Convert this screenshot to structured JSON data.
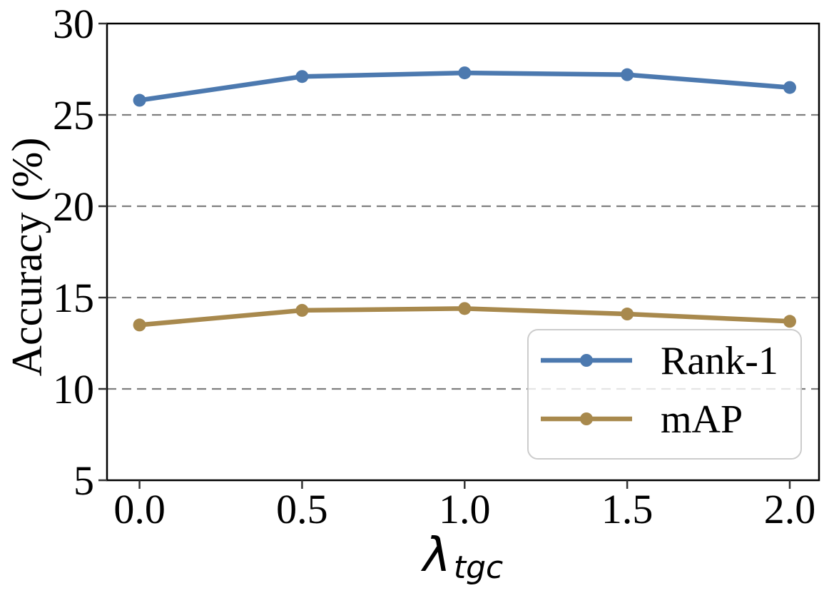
{
  "page": {
    "background": "#ffffff"
  },
  "chart_data": {
    "type": "line",
    "title": "",
    "xlabel_base": "λ",
    "xlabel_subscript": "tgc",
    "ylabel": "Accuracy (%)",
    "x": [
      0.0,
      0.5,
      1.0,
      1.5,
      2.0
    ],
    "xtick_labels": [
      "0.0",
      "0.5",
      "1.0",
      "1.5",
      "2.0"
    ],
    "ytick_values": [
      5,
      10,
      15,
      20,
      25,
      30
    ],
    "xlim": [
      -0.1,
      2.09
    ],
    "ylim": [
      5,
      30
    ],
    "gridline_values": [
      10,
      15,
      20,
      25
    ],
    "grid_style": "dashed-horizontal",
    "legend": {
      "position": "lower right",
      "entries": [
        "Rank-1",
        "mAP"
      ]
    },
    "series": [
      {
        "name": "Rank-1",
        "color": "#4C79AF",
        "values": [
          25.8,
          27.1,
          27.3,
          27.2,
          26.5
        ]
      },
      {
        "name": "mAP",
        "color": "#A8894D",
        "values": [
          13.5,
          14.3,
          14.4,
          14.1,
          13.7
        ]
      }
    ],
    "colors": {
      "gridline": "#7F7F7F",
      "axis": "#000000",
      "tick": "#333333",
      "legend_border": "#CCCCCC",
      "legend_fill": "#FFFFFF"
    }
  }
}
